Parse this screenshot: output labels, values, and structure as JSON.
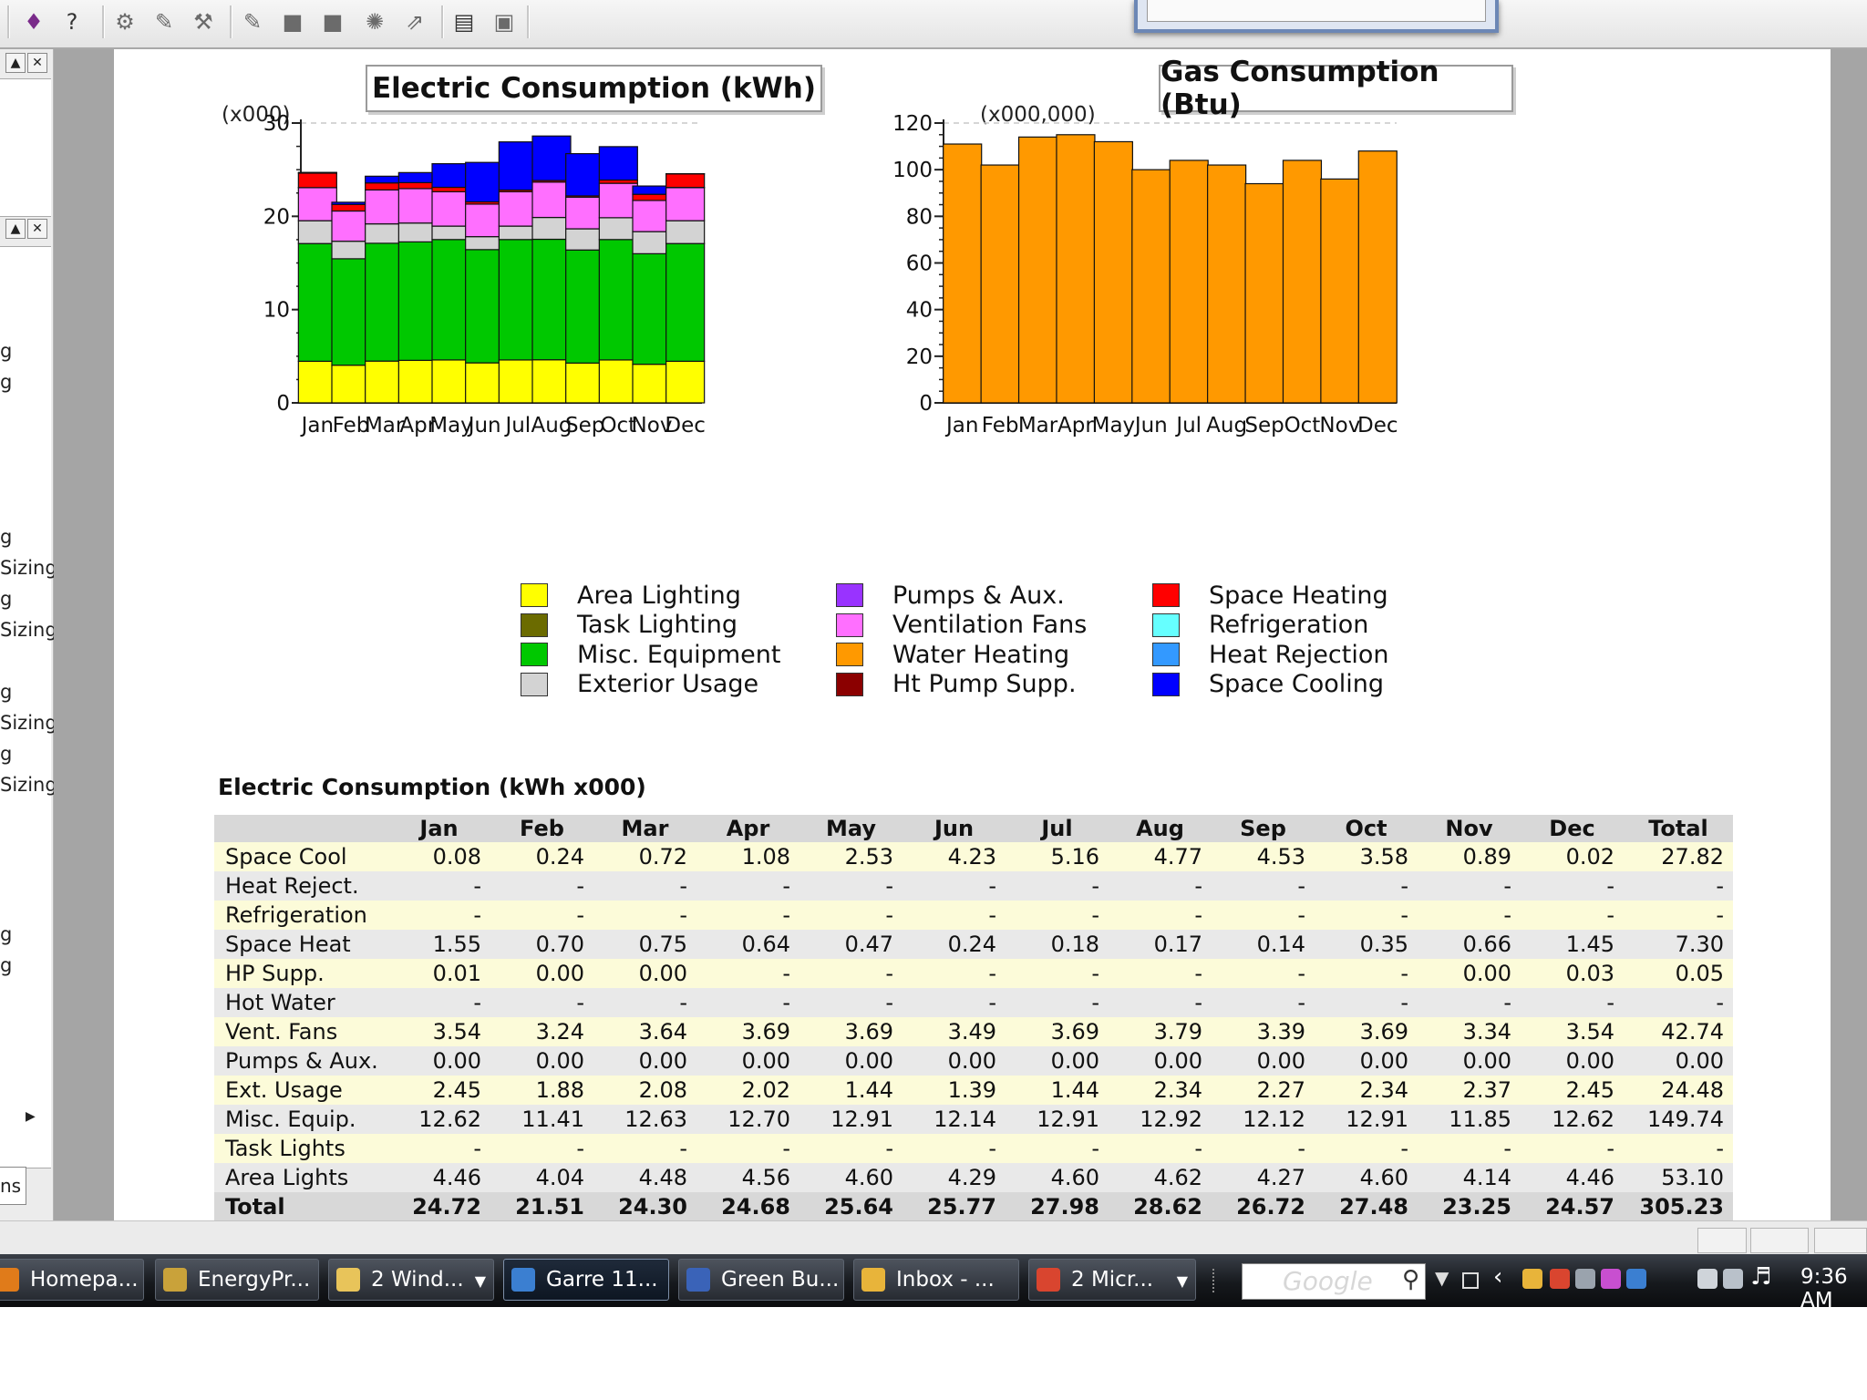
{
  "toolbar": {
    "icons": [
      "book-icon",
      "help-icon",
      "tool-icon",
      "tool-icon",
      "tool-icon",
      "tool-icon",
      "square-icon",
      "square-icon",
      "gear-icon",
      "arrow-icon",
      "report-icon",
      "image-icon"
    ]
  },
  "left_panel": {
    "upper_items": [
      "g",
      "g"
    ],
    "lower_items": [
      "g",
      "Sizing",
      "g",
      "Sizing",
      "g",
      "Sizing",
      "g",
      "Sizing",
      "g",
      "g"
    ],
    "tab_label": "ns"
  },
  "electric_chart": {
    "title": "Electric Consumption (kWh)",
    "unit": "(x000)"
  },
  "gas_chart": {
    "title": "Gas Consumption (Btu)",
    "unit": "(x000,000)"
  },
  "chart_data": [
    {
      "type": "bar",
      "stacked": true,
      "title": "Electric Consumption (kWh)",
      "ylabel": "(x000)",
      "ylim": [
        0,
        30
      ],
      "yticks": [
        0,
        10,
        20,
        30
      ],
      "categories": [
        "Jan",
        "Feb",
        "Mar",
        "Apr",
        "May",
        "Jun",
        "Jul",
        "Aug",
        "Sep",
        "Oct",
        "Nov",
        "Dec"
      ],
      "series": [
        {
          "name": "Area Lighting",
          "color": "#ffff00",
          "values": [
            4.46,
            4.04,
            4.48,
            4.56,
            4.6,
            4.29,
            4.6,
            4.62,
            4.27,
            4.6,
            4.14,
            4.46
          ]
        },
        {
          "name": "Misc. Equipment",
          "color": "#00c800",
          "values": [
            12.62,
            11.41,
            12.63,
            12.7,
            12.91,
            12.14,
            12.91,
            12.92,
            12.12,
            12.91,
            11.85,
            12.62
          ]
        },
        {
          "name": "Exterior Usage",
          "color": "#d3d3d3",
          "values": [
            2.45,
            1.88,
            2.08,
            2.02,
            1.44,
            1.39,
            1.44,
            2.34,
            2.27,
            2.34,
            2.37,
            2.45
          ]
        },
        {
          "name": "Ventilation Fans",
          "color": "#ff6fff",
          "values": [
            3.54,
            3.24,
            3.64,
            3.69,
            3.69,
            3.49,
            3.69,
            3.79,
            3.39,
            3.69,
            3.34,
            3.54
          ]
        },
        {
          "name": "Ht Pump Supp.",
          "color": "#8b0000",
          "values": [
            0.01,
            0.0,
            0.0,
            0,
            0,
            0,
            0,
            0,
            0,
            0,
            0.0,
            0.03
          ]
        },
        {
          "name": "Space Heating",
          "color": "#ff0000",
          "values": [
            1.55,
            0.7,
            0.75,
            0.64,
            0.47,
            0.24,
            0.18,
            0.17,
            0.14,
            0.35,
            0.66,
            1.45
          ]
        },
        {
          "name": "Space Cooling",
          "color": "#0000ff",
          "values": [
            0.08,
            0.24,
            0.72,
            1.08,
            2.53,
            4.23,
            5.16,
            4.77,
            4.53,
            3.58,
            0.89,
            0.02
          ]
        }
      ]
    },
    {
      "type": "bar",
      "title": "Gas Consumption (Btu)",
      "ylabel": "(x000,000)",
      "ylim": [
        0,
        120
      ],
      "yticks": [
        0,
        20,
        40,
        60,
        80,
        100,
        120
      ],
      "categories": [
        "Jan",
        "Feb",
        "Mar",
        "Apr",
        "May",
        "Jun",
        "Jul",
        "Aug",
        "Sep",
        "Oct",
        "Nov",
        "Dec"
      ],
      "series": [
        {
          "name": "Water Heating",
          "color": "#ff9900",
          "values": [
            111,
            102,
            114,
            115,
            112,
            100,
            104,
            102,
            94,
            104,
            96,
            108
          ]
        }
      ]
    }
  ],
  "legend": {
    "columns": [
      [
        {
          "label": "Area Lighting",
          "color": "#ffff00"
        },
        {
          "label": "Task Lighting",
          "color": "#6b6b00"
        },
        {
          "label": "Misc. Equipment",
          "color": "#00c800"
        },
        {
          "label": "Exterior Usage",
          "color": "#d3d3d3"
        }
      ],
      [
        {
          "label": "Pumps & Aux.",
          "color": "#9933ff"
        },
        {
          "label": "Ventilation Fans",
          "color": "#ff6fff"
        },
        {
          "label": "Water Heating",
          "color": "#ff9900"
        },
        {
          "label": "Ht Pump Supp.",
          "color": "#8b0000"
        }
      ],
      [
        {
          "label": "Space Heating",
          "color": "#ff0000"
        },
        {
          "label": "Refrigeration",
          "color": "#66ffff"
        },
        {
          "label": "Heat Rejection",
          "color": "#3399ff"
        },
        {
          "label": "Space Cooling",
          "color": "#0000ff"
        }
      ]
    ]
  },
  "table": {
    "title": "Electric Consumption (kWh x000)",
    "headers": [
      "",
      "Jan",
      "Feb",
      "Mar",
      "Apr",
      "May",
      "Jun",
      "Jul",
      "Aug",
      "Sep",
      "Oct",
      "Nov",
      "Dec",
      "Total"
    ],
    "rows": [
      [
        "Space Cool",
        "0.08",
        "0.24",
        "0.72",
        "1.08",
        "2.53",
        "4.23",
        "5.16",
        "4.77",
        "4.53",
        "3.58",
        "0.89",
        "0.02",
        "27.82"
      ],
      [
        "Heat Reject.",
        "-",
        "-",
        "-",
        "-",
        "-",
        "-",
        "-",
        "-",
        "-",
        "-",
        "-",
        "-",
        "-"
      ],
      [
        "Refrigeration",
        "-",
        "-",
        "-",
        "-",
        "-",
        "-",
        "-",
        "-",
        "-",
        "-",
        "-",
        "-",
        "-"
      ],
      [
        "Space Heat",
        "1.55",
        "0.70",
        "0.75",
        "0.64",
        "0.47",
        "0.24",
        "0.18",
        "0.17",
        "0.14",
        "0.35",
        "0.66",
        "1.45",
        "7.30"
      ],
      [
        "HP Supp.",
        "0.01",
        "0.00",
        "0.00",
        "-",
        "-",
        "-",
        "-",
        "-",
        "-",
        "-",
        "0.00",
        "0.03",
        "0.05"
      ],
      [
        "Hot Water",
        "-",
        "-",
        "-",
        "-",
        "-",
        "-",
        "-",
        "-",
        "-",
        "-",
        "-",
        "-",
        "-"
      ],
      [
        "Vent. Fans",
        "3.54",
        "3.24",
        "3.64",
        "3.69",
        "3.69",
        "3.49",
        "3.69",
        "3.79",
        "3.39",
        "3.69",
        "3.34",
        "3.54",
        "42.74"
      ],
      [
        "Pumps & Aux.",
        "0.00",
        "0.00",
        "0.00",
        "0.00",
        "0.00",
        "0.00",
        "0.00",
        "0.00",
        "0.00",
        "0.00",
        "0.00",
        "0.00",
        "0.00"
      ],
      [
        "Ext. Usage",
        "2.45",
        "1.88",
        "2.08",
        "2.02",
        "1.44",
        "1.39",
        "1.44",
        "2.34",
        "2.27",
        "2.34",
        "2.37",
        "2.45",
        "24.48"
      ],
      [
        "Misc. Equip.",
        "12.62",
        "11.41",
        "12.63",
        "12.70",
        "12.91",
        "12.14",
        "12.91",
        "12.92",
        "12.12",
        "12.91",
        "11.85",
        "12.62",
        "149.74"
      ],
      [
        "Task Lights",
        "-",
        "-",
        "-",
        "-",
        "-",
        "-",
        "-",
        "-",
        "-",
        "-",
        "-",
        "-",
        "-"
      ],
      [
        "Area Lights",
        "4.46",
        "4.04",
        "4.48",
        "4.56",
        "4.60",
        "4.29",
        "4.60",
        "4.62",
        "4.27",
        "4.60",
        "4.14",
        "4.46",
        "53.10"
      ],
      [
        "Total",
        "24.72",
        "21.51",
        "24.30",
        "24.68",
        "25.64",
        "25.77",
        "27.98",
        "28.62",
        "26.72",
        "27.48",
        "23.25",
        "24.57",
        "305.23"
      ]
    ]
  },
  "taskbar": {
    "buttons": [
      {
        "label": "Homepa...",
        "icon": "firefox-icon",
        "color": "#e07b1a",
        "active": false,
        "arrow": false
      },
      {
        "label": "EnergyPr...",
        "icon": "energyplus-icon",
        "color": "#c9a23a",
        "active": false,
        "arrow": false
      },
      {
        "label": "2 Wind...",
        "icon": "folder-icon",
        "color": "#e8c45a",
        "active": false,
        "arrow": true
      },
      {
        "label": "Garre 11...",
        "icon": "equest-icon",
        "color": "#3b7fd1",
        "active": true,
        "arrow": false
      },
      {
        "label": "Green Bu...",
        "icon": "word-icon",
        "color": "#3a63b8",
        "active": false,
        "arrow": false
      },
      {
        "label": "Inbox - ...",
        "icon": "outlook-icon",
        "color": "#e8b43a",
        "active": false,
        "arrow": false
      },
      {
        "label": "2 Micr...",
        "icon": "office-icon",
        "color": "#d9452f",
        "active": false,
        "arrow": true
      }
    ],
    "search_placeholder": "Google",
    "clock": "9:36 AM"
  }
}
